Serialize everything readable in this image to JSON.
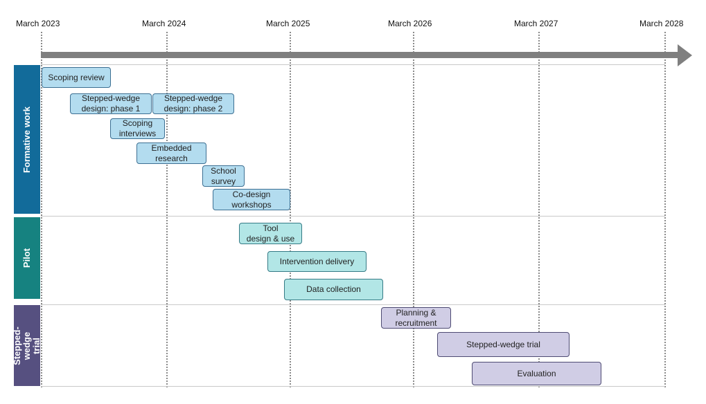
{
  "timeline": {
    "years": [
      "March 2023",
      "March 2024",
      "March 2025",
      "March 2026",
      "March 2027",
      "March 2028"
    ]
  },
  "phases": [
    {
      "label": "Formative work",
      "color": "#126b9a"
    },
    {
      "label": "Pilot",
      "color": "#168280"
    },
    {
      "label": "Stepped-wedge\ntrial",
      "color": "#565080"
    }
  ],
  "tasks": {
    "scoping_review": "Scoping review",
    "sw_design_1": "Stepped-wedge\ndesign: phase 1",
    "sw_design_2": "Stepped-wedge\ndesign: phase 2",
    "scoping_interviews": "Scoping\ninterviews",
    "embedded_research": "Embedded\nresearch",
    "school_survey": "School\nsurvey",
    "codesign": "Co-design\nworkshops",
    "tool_design": "Tool\ndesign & use",
    "intervention_delivery": "Intervention delivery",
    "data_collection": "Data collection",
    "planning": "Planning &\nrecruitment",
    "sw_trial": "Stepped-wedge trial",
    "evaluation": "Evaluation"
  }
}
